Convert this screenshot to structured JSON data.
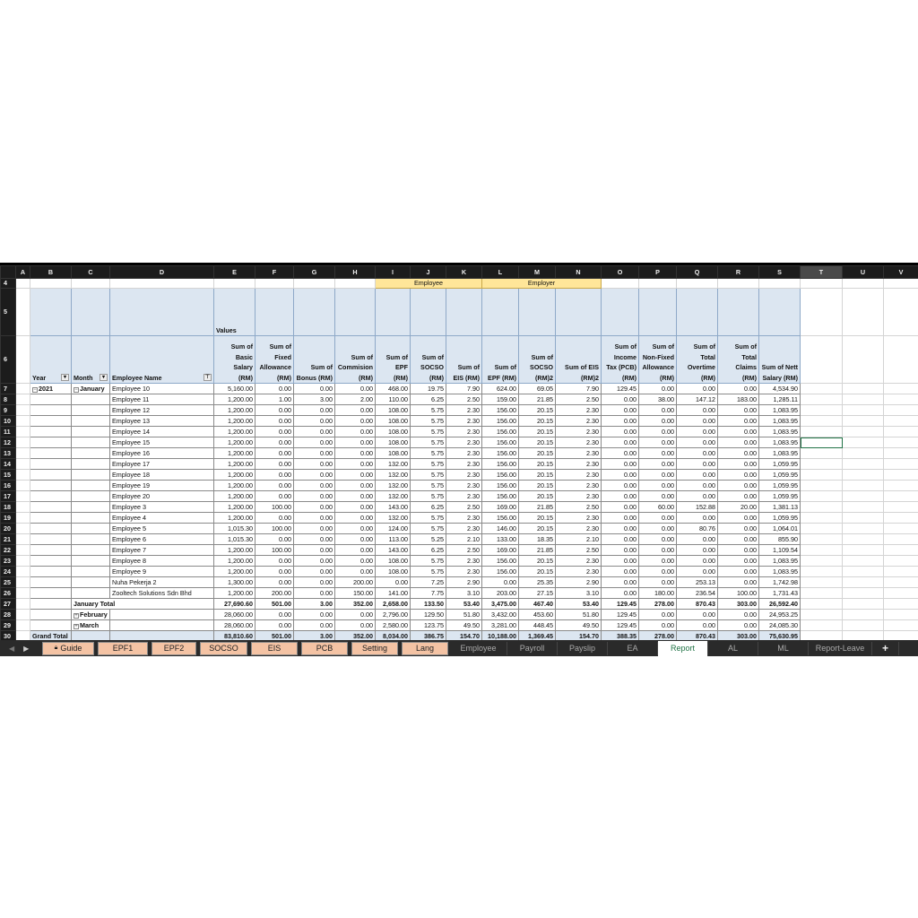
{
  "columns": [
    "A",
    "B",
    "C",
    "D",
    "E",
    "F",
    "G",
    "H",
    "I",
    "J",
    "K",
    "L",
    "M",
    "N",
    "O",
    "P",
    "Q",
    "R",
    "S",
    "T",
    "U",
    "V"
  ],
  "selected_cell": "T12",
  "pivot": {
    "employee_group": "Employee",
    "employer_group": "Employer",
    "values_label": "Values",
    "headers": {
      "year": "Year",
      "month": "Month",
      "employee_name": "Employee Name"
    },
    "value_headers": [
      "Sum of\nBasic Salary\n(RM)",
      "Sum of\nFixed\nAllowance\n(RM)",
      "Sum of\nBonus (RM)",
      "Sum of\nCommision\n(RM)",
      "Sum of\nEPF\n(RM)",
      "Sum of\nSOCSO\n(RM)",
      "Sum of\nEIS (RM)",
      "Sum of\nEPF (RM)",
      "Sum of\nSOCSO\n(RM)2",
      "Sum of EIS\n(RM)2",
      "Sum of\nIncome\nTax (PCB)\n(RM)",
      "Sum of\nNon-Fixed\nAllowance\n(RM)",
      "Sum of\nTotal\nOvertime\n(RM)",
      "Sum of\nTotal\nClaims\n(RM)",
      "Sum of Nett\nSalary (RM)"
    ],
    "rows": [
      {
        "year": "2021",
        "month": "January",
        "name": "Employee 10",
        "v": [
          "5,160.00",
          "0.00",
          "0.00",
          "0.00",
          "468.00",
          "19.75",
          "7.90",
          "624.00",
          "69.05",
          "7.90",
          "129.45",
          "0.00",
          "0.00",
          "0.00",
          "4,534.90"
        ]
      },
      {
        "name": "Employee 11",
        "v": [
          "1,200.00",
          "1.00",
          "3.00",
          "2.00",
          "110.00",
          "6.25",
          "2.50",
          "159.00",
          "21.85",
          "2.50",
          "0.00",
          "38.00",
          "147.12",
          "183.00",
          "1,285.11"
        ]
      },
      {
        "name": "Employee 12",
        "v": [
          "1,200.00",
          "0.00",
          "0.00",
          "0.00",
          "108.00",
          "5.75",
          "2.30",
          "156.00",
          "20.15",
          "2.30",
          "0.00",
          "0.00",
          "0.00",
          "0.00",
          "1,083.95"
        ]
      },
      {
        "name": "Employee 13",
        "v": [
          "1,200.00",
          "0.00",
          "0.00",
          "0.00",
          "108.00",
          "5.75",
          "2.30",
          "156.00",
          "20.15",
          "2.30",
          "0.00",
          "0.00",
          "0.00",
          "0.00",
          "1,083.95"
        ]
      },
      {
        "name": "Employee 14",
        "v": [
          "1,200.00",
          "0.00",
          "0.00",
          "0.00",
          "108.00",
          "5.75",
          "2.30",
          "156.00",
          "20.15",
          "2.30",
          "0.00",
          "0.00",
          "0.00",
          "0.00",
          "1,083.95"
        ]
      },
      {
        "name": "Employee 15",
        "v": [
          "1,200.00",
          "0.00",
          "0.00",
          "0.00",
          "108.00",
          "5.75",
          "2.30",
          "156.00",
          "20.15",
          "2.30",
          "0.00",
          "0.00",
          "0.00",
          "0.00",
          "1,083.95"
        ]
      },
      {
        "name": "Employee 16",
        "v": [
          "1,200.00",
          "0.00",
          "0.00",
          "0.00",
          "108.00",
          "5.75",
          "2.30",
          "156.00",
          "20.15",
          "2.30",
          "0.00",
          "0.00",
          "0.00",
          "0.00",
          "1,083.95"
        ]
      },
      {
        "name": "Employee 17",
        "v": [
          "1,200.00",
          "0.00",
          "0.00",
          "0.00",
          "132.00",
          "5.75",
          "2.30",
          "156.00",
          "20.15",
          "2.30",
          "0.00",
          "0.00",
          "0.00",
          "0.00",
          "1,059.95"
        ]
      },
      {
        "name": "Employee 18",
        "v": [
          "1,200.00",
          "0.00",
          "0.00",
          "0.00",
          "132.00",
          "5.75",
          "2.30",
          "156.00",
          "20.15",
          "2.30",
          "0.00",
          "0.00",
          "0.00",
          "0.00",
          "1,059.95"
        ]
      },
      {
        "name": "Employee 19",
        "v": [
          "1,200.00",
          "0.00",
          "0.00",
          "0.00",
          "132.00",
          "5.75",
          "2.30",
          "156.00",
          "20.15",
          "2.30",
          "0.00",
          "0.00",
          "0.00",
          "0.00",
          "1,059.95"
        ]
      },
      {
        "name": "Employee 20",
        "v": [
          "1,200.00",
          "0.00",
          "0.00",
          "0.00",
          "132.00",
          "5.75",
          "2.30",
          "156.00",
          "20.15",
          "2.30",
          "0.00",
          "0.00",
          "0.00",
          "0.00",
          "1,059.95"
        ]
      },
      {
        "name": "Employee 3",
        "v": [
          "1,200.00",
          "100.00",
          "0.00",
          "0.00",
          "143.00",
          "6.25",
          "2.50",
          "169.00",
          "21.85",
          "2.50",
          "0.00",
          "60.00",
          "152.88",
          "20.00",
          "1,381.13"
        ]
      },
      {
        "name": "Employee 4",
        "v": [
          "1,200.00",
          "0.00",
          "0.00",
          "0.00",
          "132.00",
          "5.75",
          "2.30",
          "156.00",
          "20.15",
          "2.30",
          "0.00",
          "0.00",
          "0.00",
          "0.00",
          "1,059.95"
        ]
      },
      {
        "name": "Employee 5",
        "v": [
          "1,015.30",
          "100.00",
          "0.00",
          "0.00",
          "124.00",
          "5.75",
          "2.30",
          "146.00",
          "20.15",
          "2.30",
          "0.00",
          "0.00",
          "80.76",
          "0.00",
          "1,064.01"
        ]
      },
      {
        "name": "Employee 6",
        "v": [
          "1,015.30",
          "0.00",
          "0.00",
          "0.00",
          "113.00",
          "5.25",
          "2.10",
          "133.00",
          "18.35",
          "2.10",
          "0.00",
          "0.00",
          "0.00",
          "0.00",
          "855.90"
        ]
      },
      {
        "name": "Employee 7",
        "v": [
          "1,200.00",
          "100.00",
          "0.00",
          "0.00",
          "143.00",
          "6.25",
          "2.50",
          "169.00",
          "21.85",
          "2.50",
          "0.00",
          "0.00",
          "0.00",
          "0.00",
          "1,109.54"
        ]
      },
      {
        "name": "Employee 8",
        "v": [
          "1,200.00",
          "0.00",
          "0.00",
          "0.00",
          "108.00",
          "5.75",
          "2.30",
          "156.00",
          "20.15",
          "2.30",
          "0.00",
          "0.00",
          "0.00",
          "0.00",
          "1,083.95"
        ]
      },
      {
        "name": "Employee 9",
        "v": [
          "1,200.00",
          "0.00",
          "0.00",
          "0.00",
          "108.00",
          "5.75",
          "2.30",
          "156.00",
          "20.15",
          "2.30",
          "0.00",
          "0.00",
          "0.00",
          "0.00",
          "1,083.95"
        ]
      },
      {
        "name": "Nuha Pekerja 2",
        "v": [
          "1,300.00",
          "0.00",
          "0.00",
          "200.00",
          "0.00",
          "7.25",
          "2.90",
          "0.00",
          "25.35",
          "2.90",
          "0.00",
          "0.00",
          "253.13",
          "0.00",
          "1,742.98"
        ]
      },
      {
        "name": "Zooltech Solutions Sdn Bhd",
        "v": [
          "1,200.00",
          "200.00",
          "0.00",
          "150.00",
          "141.00",
          "7.75",
          "3.10",
          "203.00",
          "27.15",
          "3.10",
          "0.00",
          "180.00",
          "236.54",
          "100.00",
          "1,731.43"
        ]
      },
      {
        "kind": "total",
        "label": "January Total",
        "v": [
          "27,690.60",
          "501.00",
          "3.00",
          "352.00",
          "2,658.00",
          "133.50",
          "53.40",
          "3,475.00",
          "467.40",
          "53.40",
          "129.45",
          "278.00",
          "870.43",
          "303.00",
          "26,592.40"
        ]
      },
      {
        "kind": "month",
        "month": "February",
        "v": [
          "28,060.00",
          "0.00",
          "0.00",
          "0.00",
          "2,796.00",
          "129.50",
          "51.80",
          "3,432.00",
          "453.60",
          "51.80",
          "129.45",
          "0.00",
          "0.00",
          "0.00",
          "24,953.25"
        ]
      },
      {
        "kind": "month",
        "month": "March",
        "v": [
          "28,060.00",
          "0.00",
          "0.00",
          "0.00",
          "2,580.00",
          "123.75",
          "49.50",
          "3,281.00",
          "448.45",
          "49.50",
          "129.45",
          "0.00",
          "0.00",
          "0.00",
          "24,085.30"
        ]
      },
      {
        "kind": "grand",
        "label": "Grand Total",
        "v": [
          "83,810.60",
          "501.00",
          "3.00",
          "352.00",
          "8,034.00",
          "386.75",
          "154.70",
          "10,188.00",
          "1,369.45",
          "154.70",
          "388.35",
          "278.00",
          "870.43",
          "303.00",
          "75,630.95"
        ]
      }
    ]
  },
  "sheet_tabs": [
    {
      "label": "Guide",
      "colored": true,
      "locked": true
    },
    {
      "label": "EPF1",
      "colored": true
    },
    {
      "label": "EPF2",
      "colored": true
    },
    {
      "label": "SOCSO",
      "colored": true
    },
    {
      "label": "EIS",
      "colored": true
    },
    {
      "label": "PCB",
      "colored": true
    },
    {
      "label": "Setting",
      "colored": true
    },
    {
      "label": "Lang",
      "colored": true
    },
    {
      "label": "Employee"
    },
    {
      "label": "Payroll"
    },
    {
      "label": "Payslip"
    },
    {
      "label": "EA"
    },
    {
      "label": "Report",
      "active": true
    },
    {
      "label": "AL"
    },
    {
      "label": "ML"
    },
    {
      "label": "Report-Leave"
    }
  ],
  "add_sheet": "+",
  "colors": {
    "pivot_header": "#dce6f1",
    "group_header": "#ffe699",
    "tab_colored": "#f4c3a4",
    "active_tab_text": "#217346"
  }
}
